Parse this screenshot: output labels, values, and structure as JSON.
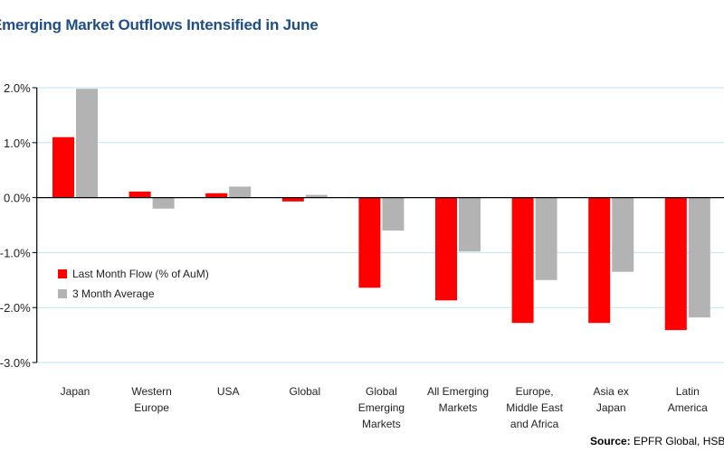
{
  "chart_data": {
    "type": "bar",
    "title": "Emerging Market Outflows Intensified in June",
    "categories": [
      "Japan",
      "Western\nEurope",
      "USA",
      "Global",
      "Global\nEmerging\nMarkets",
      "All Emerging\nMarkets",
      "Europe,\nMiddle East\nand Africa",
      "Asia ex\nJapan",
      "Latin\nAmerica"
    ],
    "series": [
      {
        "name": "Last Month Flow (% of AuM)",
        "color": "#ff0000",
        "values": [
          1.1,
          0.11,
          0.08,
          -0.07,
          -1.64,
          -1.87,
          -2.28,
          -2.28,
          -2.41
        ]
      },
      {
        "name": "3 Month Average",
        "color": "#b3b3b3",
        "values": [
          1.98,
          -0.2,
          0.2,
          0.05,
          -0.6,
          -0.98,
          -1.5,
          -1.35,
          -2.18
        ]
      }
    ],
    "yticks": [
      "2.0%",
      "1.0%",
      "0.0%",
      "-1.0%",
      "-2.0%",
      "-3.0%"
    ],
    "ylim": [
      -3.0,
      2.0
    ],
    "grid": true,
    "legend": "left",
    "source_label": "Source:",
    "source_text": "EPFR Global, HSBC"
  }
}
